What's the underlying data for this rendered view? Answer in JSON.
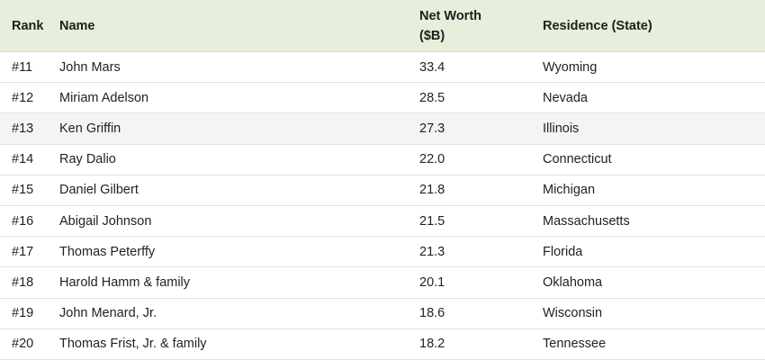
{
  "table": {
    "headers": {
      "rank": "Rank",
      "name": "Name",
      "net_worth_line1": "Net Worth",
      "net_worth_line2": "($B)",
      "residence": "Residence (State)"
    },
    "rows": [
      {
        "rank": "#11",
        "name": "John Mars",
        "net_worth": "33.4",
        "residence": "Wyoming"
      },
      {
        "rank": "#12",
        "name": "Miriam Adelson",
        "net_worth": "28.5",
        "residence": "Nevada"
      },
      {
        "rank": "#13",
        "name": "Ken Griffin",
        "net_worth": "27.3",
        "residence": "Illinois"
      },
      {
        "rank": "#14",
        "name": "Ray Dalio",
        "net_worth": "22.0",
        "residence": "Connecticut"
      },
      {
        "rank": "#15",
        "name": "Daniel Gilbert",
        "net_worth": "21.8",
        "residence": "Michigan"
      },
      {
        "rank": "#16",
        "name": "Abigail Johnson",
        "net_worth": "21.5",
        "residence": "Massachusetts"
      },
      {
        "rank": "#17",
        "name": "Thomas Peterffy",
        "net_worth": "21.3",
        "residence": "Florida"
      },
      {
        "rank": "#18",
        "name": "Harold Hamm & family",
        "net_worth": "20.1",
        "residence": "Oklahoma"
      },
      {
        "rank": "#19",
        "name": "John Menard, Jr.",
        "net_worth": "18.6",
        "residence": "Wisconsin"
      },
      {
        "rank": "#20",
        "name": "Thomas Frist, Jr. & family",
        "net_worth": "18.2",
        "residence": "Tennessee"
      }
    ]
  },
  "colors": {
    "header_background": "#e7efdc",
    "alternate_row_background": "#f4f4f4"
  }
}
